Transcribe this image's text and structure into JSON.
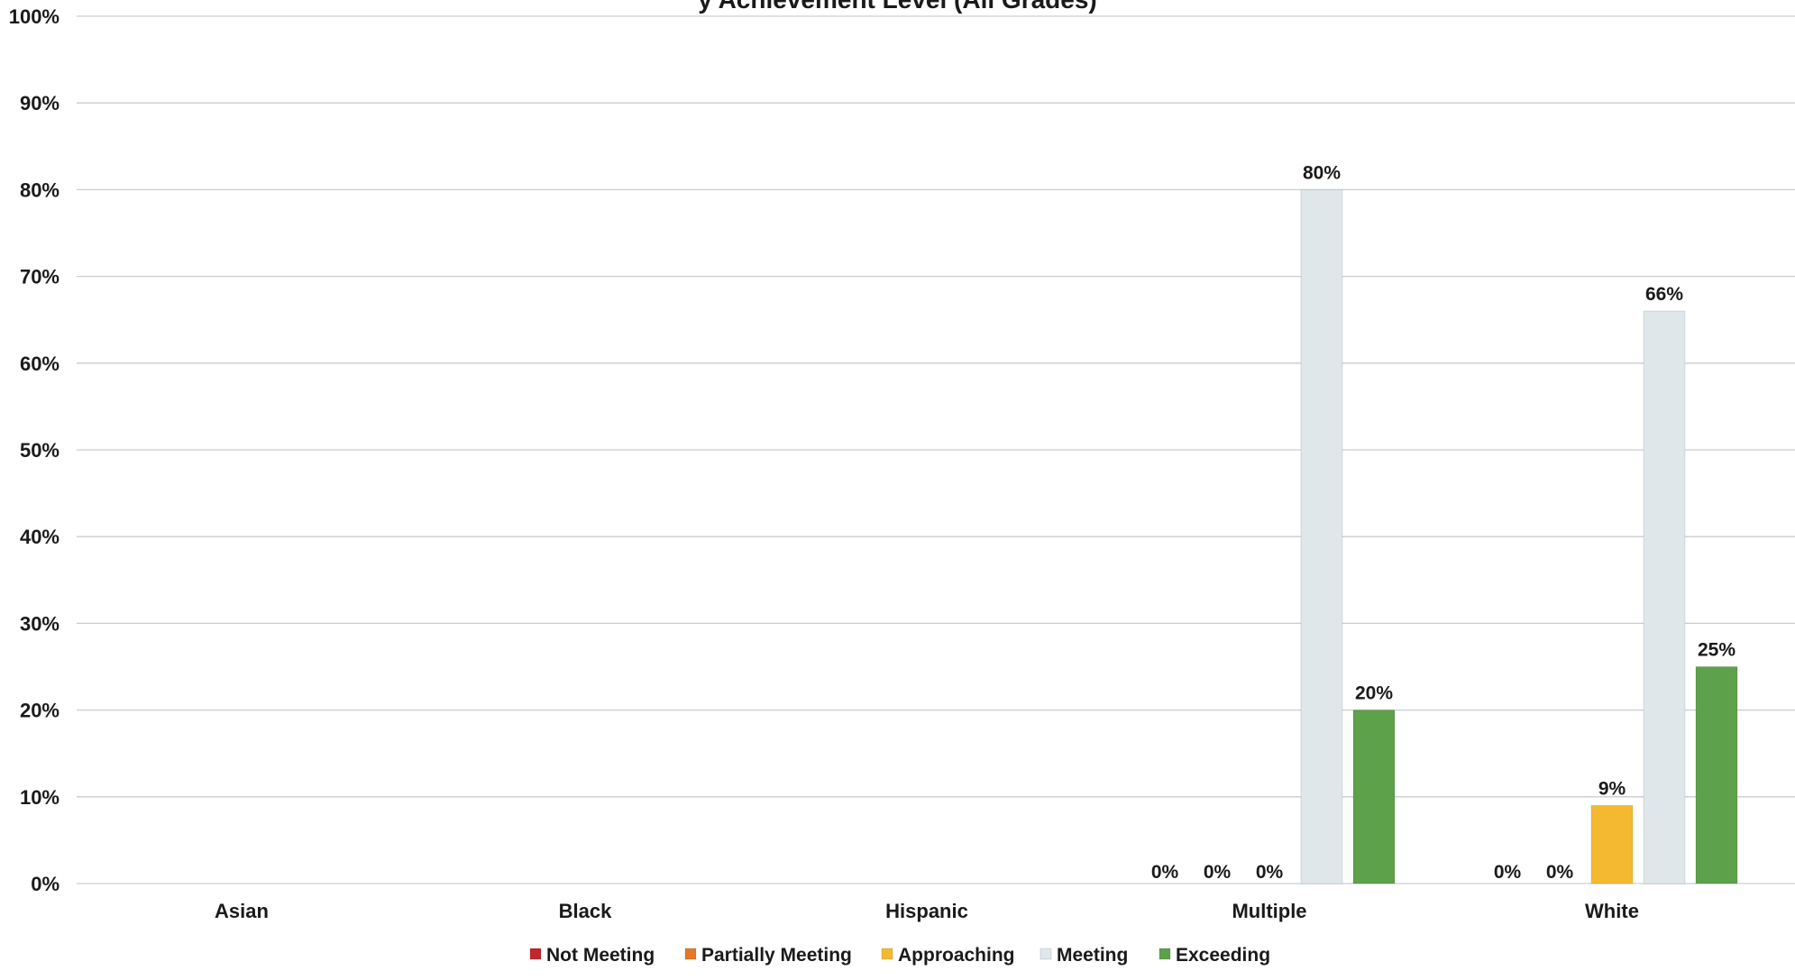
{
  "chart_data": {
    "type": "bar",
    "title": "y Achievement Level (All Grades)",
    "xlabel": "",
    "ylabel": "",
    "ylim": [
      0,
      100
    ],
    "yticks": [
      "0%",
      "10%",
      "20%",
      "30%",
      "40%",
      "50%",
      "60%",
      "70%",
      "80%",
      "90%",
      "100%"
    ],
    "categories": [
      "Asian",
      "Black",
      "Hispanic",
      "Multiple",
      "White"
    ],
    "grid": true,
    "legend_position": "bottom",
    "series": [
      {
        "name": "Not Meeting",
        "color": "#c0272d",
        "values": [
          null,
          null,
          null,
          0,
          0
        ],
        "labels": [
          "",
          "",
          "",
          "0%",
          "0%"
        ]
      },
      {
        "name": "Partially Meeting",
        "color": "#e4782b",
        "values": [
          null,
          null,
          null,
          0,
          0
        ],
        "labels": [
          "",
          "",
          "",
          "0%",
          "0%"
        ]
      },
      {
        "name": "Approaching",
        "color": "#f5b931",
        "values": [
          null,
          null,
          null,
          0,
          9
        ],
        "labels": [
          "",
          "",
          "",
          "0%",
          "9%"
        ]
      },
      {
        "name": "Meeting",
        "color": "#dfe7ea",
        "values": [
          null,
          null,
          null,
          80,
          66
        ],
        "labels": [
          "",
          "",
          "",
          "80%",
          "66%"
        ]
      },
      {
        "name": "Exceeding",
        "color": "#5ea14b",
        "values": [
          null,
          null,
          null,
          20,
          25
        ],
        "labels": [
          "",
          "",
          "",
          "20%",
          "25%"
        ]
      }
    ]
  }
}
